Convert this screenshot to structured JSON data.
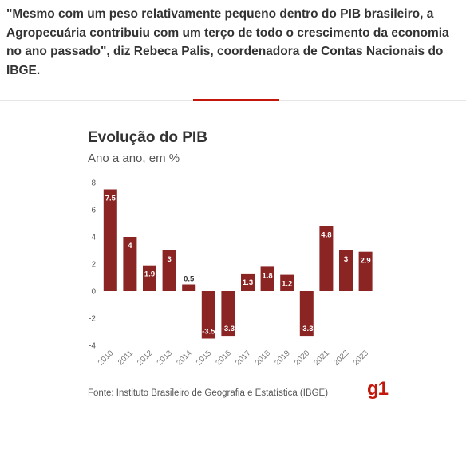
{
  "quote": "\"Mesmo com um peso relativamente pequeno dentro do PIB brasileiro, a Agropecuária contribuiu com um terço de todo o crescimento da economia no ano passado\", diz Rebeca Palis, coordenadora de Contas Nacionais do IBGE.",
  "source": "Fonte: Instituto Brasileiro de Geografia e Estatística (IBGE)",
  "logo": "g1",
  "colors": {
    "bar": "#8b2524",
    "accent": "#c4170c"
  },
  "chart_data": {
    "type": "bar",
    "title": "Evolução do PIB",
    "subtitle": "Ano a ano, em %",
    "categories": [
      "2010",
      "2011",
      "2012",
      "2013",
      "2014",
      "2015",
      "2016",
      "2017",
      "2018",
      "2019",
      "2020",
      "2021",
      "2022",
      "2023"
    ],
    "values": [
      7.5,
      4,
      1.9,
      3,
      0.5,
      -3.5,
      -3.3,
      1.3,
      1.8,
      1.2,
      -3.3,
      4.8,
      3,
      2.9
    ],
    "labels": [
      "7.5",
      "4",
      "1.9",
      "3",
      "0.5",
      "-3.5",
      "-3.3",
      "1.3",
      "1.8",
      "1.2",
      "-3.3",
      "4.8",
      "3",
      "2.9"
    ],
    "yticks": [
      8,
      6,
      4,
      2,
      0,
      -2,
      -4
    ],
    "ylim": [
      -4,
      8
    ],
    "grid": false,
    "legend": "none"
  }
}
